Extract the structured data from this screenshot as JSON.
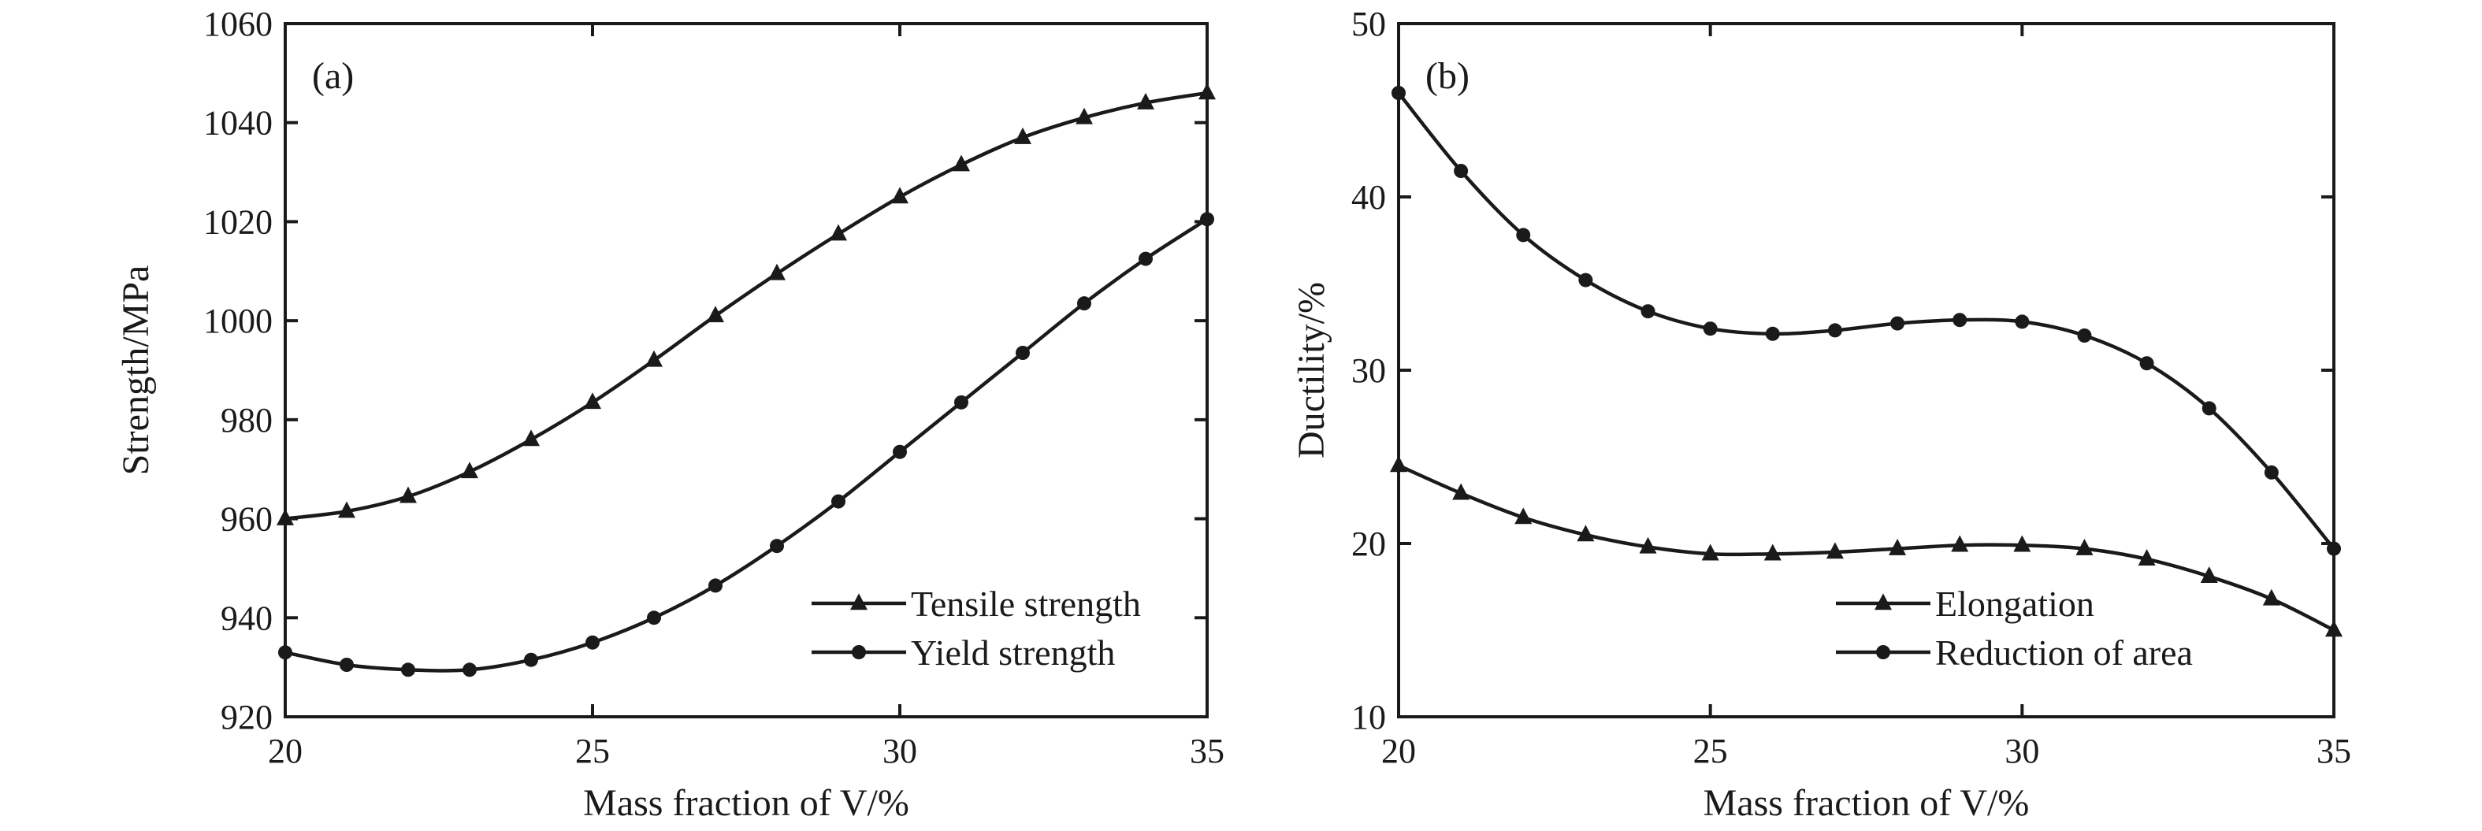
{
  "chart_data": [
    {
      "type": "line",
      "panel_label": "(a)",
      "xlabel": "Mass fraction of V/%",
      "ylabel": "Strength/MPa",
      "xlim": [
        20,
        35
      ],
      "ylim": [
        920,
        1060
      ],
      "xticks": [
        20,
        25,
        30,
        35
      ],
      "yticks": [
        920,
        940,
        960,
        980,
        1000,
        1020,
        1040,
        1060
      ],
      "legend_position": "bottom-right",
      "x": [
        20,
        21,
        22,
        23,
        24,
        25,
        26,
        27,
        28,
        29,
        30,
        31,
        32,
        33,
        34,
        35
      ],
      "series": [
        {
          "name": "Tensile strength",
          "marker": "triangle",
          "values": [
            960.0,
            961.5,
            964.5,
            969.5,
            976.0,
            983.5,
            992.0,
            1001.0,
            1009.5,
            1017.5,
            1025.0,
            1031.5,
            1037.0,
            1041.0,
            1044.0,
            1046.0
          ]
        },
        {
          "name": "Yield strength",
          "marker": "circle",
          "values": [
            933.0,
            930.5,
            929.5,
            929.5,
            931.5,
            935.0,
            940.0,
            946.5,
            954.5,
            963.5,
            973.5,
            983.5,
            993.5,
            1003.5,
            1012.5,
            1020.5
          ]
        }
      ]
    },
    {
      "type": "line",
      "panel_label": "(b)",
      "xlabel": "Mass fraction of V/%",
      "ylabel": "Ductility/%",
      "xlim": [
        20,
        35
      ],
      "ylim": [
        10,
        50
      ],
      "xticks": [
        20,
        25,
        30,
        35
      ],
      "yticks": [
        10,
        20,
        30,
        40,
        50
      ],
      "legend_position": "bottom-right",
      "x": [
        20,
        21,
        22,
        23,
        24,
        25,
        26,
        27,
        28,
        29,
        30,
        31,
        32,
        33,
        34,
        35
      ],
      "series": [
        {
          "name": "Elongation",
          "marker": "triangle",
          "values": [
            24.5,
            22.9,
            21.5,
            20.5,
            19.8,
            19.4,
            19.4,
            19.5,
            19.7,
            19.9,
            19.9,
            19.7,
            19.1,
            18.1,
            16.8,
            15.0
          ]
        },
        {
          "name": "Reduction of area",
          "marker": "circle",
          "values": [
            46.0,
            41.5,
            37.8,
            35.2,
            33.4,
            32.4,
            32.1,
            32.3,
            32.7,
            32.9,
            32.8,
            32.0,
            30.4,
            27.8,
            24.1,
            19.7
          ]
        }
      ]
    }
  ]
}
